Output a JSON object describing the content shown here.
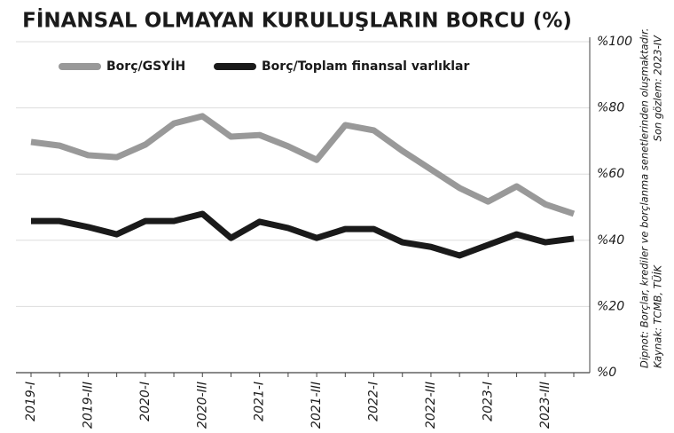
{
  "chart_data": {
    "type": "line",
    "title": "FİNANSAL OLMAYAN KURULUŞLARIN BORCU (%)",
    "categories": [
      "2019-I",
      null,
      "2019-III",
      null,
      "2020-I",
      null,
      "2020-III",
      null,
      "2021-I",
      null,
      "2021-III",
      null,
      "2022-I",
      null,
      "2022-III",
      null,
      "2023-I",
      null,
      "2023-III",
      null
    ],
    "series": [
      {
        "name": "Borç/GSYİH",
        "color": "#999999",
        "values": [
          69.7,
          68.6,
          65.7,
          65.1,
          68.9,
          75.3,
          77.5,
          71.3,
          71.8,
          68.4,
          64.3,
          74.8,
          73.2,
          67,
          61.4,
          55.8,
          51.7,
          56.3,
          50.9,
          48
        ]
      },
      {
        "name": "Borç/Toplam finansal varlıklar",
        "color": "#1a1a1a",
        "values": [
          45.8,
          45.8,
          44,
          41.8,
          45.8,
          45.8,
          48,
          40.7,
          45.6,
          43.7,
          40.7,
          43.4,
          43.4,
          39.4,
          38,
          35.4,
          38.6,
          41.8,
          39.4,
          40.5
        ]
      }
    ],
    "ylim": [
      0,
      100
    ],
    "yticks": [
      {
        "value": 0,
        "label": "%0"
      },
      {
        "value": 20,
        "label": "%20"
      },
      {
        "value": 40,
        "label": "%40"
      },
      {
        "value": 60,
        "label": "%60"
      },
      {
        "value": 80,
        "label": "%80"
      },
      {
        "value": 100,
        "label": "%100"
      }
    ],
    "grid": true,
    "legend": "top-left",
    "annotations": [
      "Dipnot: Borçlar, krediler ve borçlanma senetlerinden oluşmaktadır.",
      "Kaynak: TCMB, TÜİK",
      "Son gözlem: 2023-IV"
    ]
  }
}
